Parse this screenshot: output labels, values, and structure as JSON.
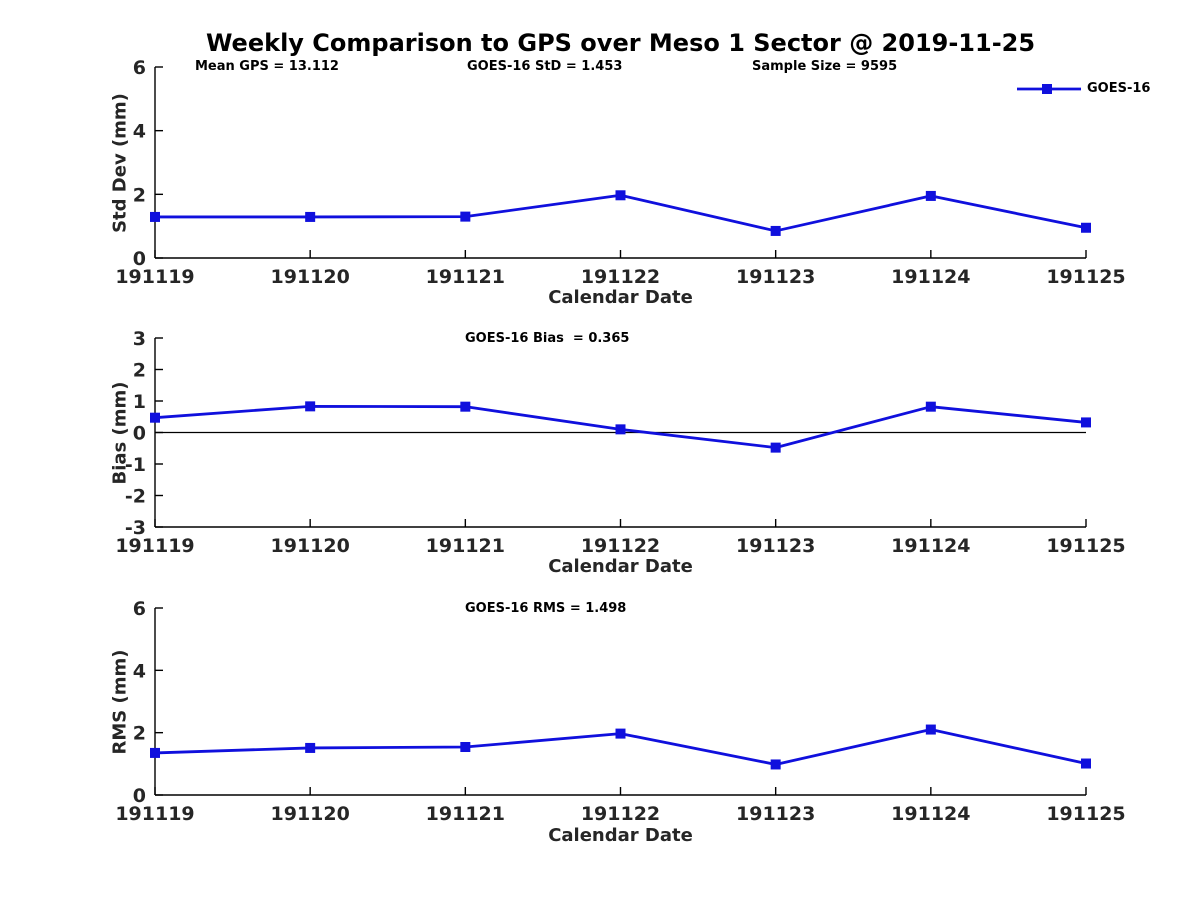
{
  "title": "Weekly Comparison to GPS over Meso 1 Sector @ 2019-11-25",
  "legend": {
    "label": "GOES-16"
  },
  "colors": {
    "line": "#1010dd",
    "axis": "#000000",
    "tick_text": "#262626"
  },
  "chart_data": [
    {
      "type": "line",
      "ylabel": "Std Dev (mm)",
      "xlabel": "Calendar Date",
      "categories": [
        "191119",
        "191120",
        "191121",
        "191122",
        "191123",
        "191124",
        "191125"
      ],
      "ylim": [
        0,
        6
      ],
      "yticks": [
        0,
        2,
        4,
        6
      ],
      "grid": false,
      "legend_position": "top-right",
      "series": [
        {
          "name": "GOES-16",
          "color": "#1010dd",
          "marker": "square",
          "values": [
            1.29,
            1.29,
            1.3,
            1.97,
            0.85,
            1.95,
            0.95
          ]
        }
      ],
      "annotations": [
        {
          "text": "Mean GPS = 13.112"
        },
        {
          "text": "GOES-16 StD = 1.453"
        },
        {
          "text": "Sample Size = 9595"
        }
      ]
    },
    {
      "type": "line",
      "ylabel": "Bias (mm)",
      "xlabel": "Calendar Date",
      "categories": [
        "191119",
        "191120",
        "191121",
        "191122",
        "191123",
        "191124",
        "191125"
      ],
      "ylim": [
        -3,
        3
      ],
      "yticks": [
        3,
        2,
        1,
        0,
        -1,
        -2,
        -3
      ],
      "zero_line": true,
      "grid": false,
      "series": [
        {
          "name": "GOES-16",
          "color": "#1010dd",
          "marker": "square",
          "values": [
            0.47,
            0.83,
            0.82,
            0.1,
            -0.48,
            0.82,
            0.32
          ]
        }
      ],
      "annotations": [
        {
          "text": "GOES-16 Bias  = 0.365"
        }
      ]
    },
    {
      "type": "line",
      "ylabel": "RMS (mm)",
      "xlabel": "Calendar Date",
      "categories": [
        "191119",
        "191120",
        "191121",
        "191122",
        "191123",
        "191124",
        "191125"
      ],
      "ylim": [
        0,
        6
      ],
      "yticks": [
        0,
        2,
        4,
        6
      ],
      "grid": false,
      "series": [
        {
          "name": "GOES-16",
          "color": "#1010dd",
          "marker": "square",
          "values": [
            1.35,
            1.51,
            1.54,
            1.97,
            0.98,
            2.1,
            1.01
          ]
        }
      ],
      "annotations": [
        {
          "text": "GOES-16 RMS = 1.498"
        }
      ]
    }
  ]
}
